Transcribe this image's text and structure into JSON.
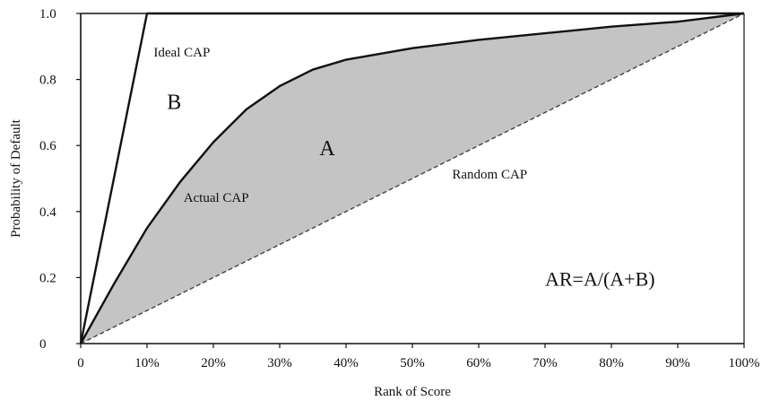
{
  "chart_data": {
    "type": "line",
    "title": "",
    "xlabel": "Rank of Score",
    "ylabel": "Probability of Default",
    "xlim": [
      0,
      100
    ],
    "ylim": [
      0,
      1
    ],
    "grid": false,
    "x_ticks": [
      "0",
      "10%",
      "20%",
      "30%",
      "40%",
      "50%",
      "60%",
      "70%",
      "80%",
      "90%",
      "100%"
    ],
    "x_tick_values": [
      0,
      10,
      20,
      30,
      40,
      50,
      60,
      70,
      80,
      90,
      100
    ],
    "y_ticks": [
      "0",
      "0.2",
      "0.4",
      "0.6",
      "0.8",
      "1.0"
    ],
    "y_tick_values": [
      0,
      0.2,
      0.4,
      0.6,
      0.8,
      1.0
    ],
    "series": [
      {
        "name": "Ideal CAP",
        "style": "solid",
        "x": [
          0,
          10,
          100
        ],
        "y": [
          0,
          1.0,
          1.0
        ]
      },
      {
        "name": "Actual CAP",
        "style": "solid",
        "x": [
          0,
          5,
          10,
          15,
          20,
          25,
          30,
          35,
          40,
          50,
          60,
          70,
          80,
          90,
          100
        ],
        "y": [
          0,
          0.18,
          0.35,
          0.49,
          0.61,
          0.71,
          0.78,
          0.83,
          0.86,
          0.895,
          0.92,
          0.94,
          0.96,
          0.975,
          1.0
        ]
      },
      {
        "name": "Random CAP",
        "style": "dashed",
        "x": [
          0,
          100
        ],
        "y": [
          0,
          1.0
        ]
      }
    ],
    "shaded_region": {
      "between": [
        "Actual CAP",
        "Random CAP"
      ],
      "color": "#c4c4c4"
    },
    "annotations": [
      {
        "text": "Ideal CAP",
        "x": 11,
        "y": 0.87
      },
      {
        "text": "B",
        "x": 13,
        "y": 0.71
      },
      {
        "text": "A",
        "x": 36,
        "y": 0.57
      },
      {
        "text": "Actual CAP",
        "x": 15.5,
        "y": 0.43
      },
      {
        "text": "Random CAP",
        "x": 56,
        "y": 0.5
      },
      {
        "text": "AR=A/(A+B)",
        "x": 70,
        "y": 0.175
      }
    ],
    "colors": {
      "line": "#111111",
      "fill": "#c4c4c4",
      "dash": "#444444"
    }
  }
}
